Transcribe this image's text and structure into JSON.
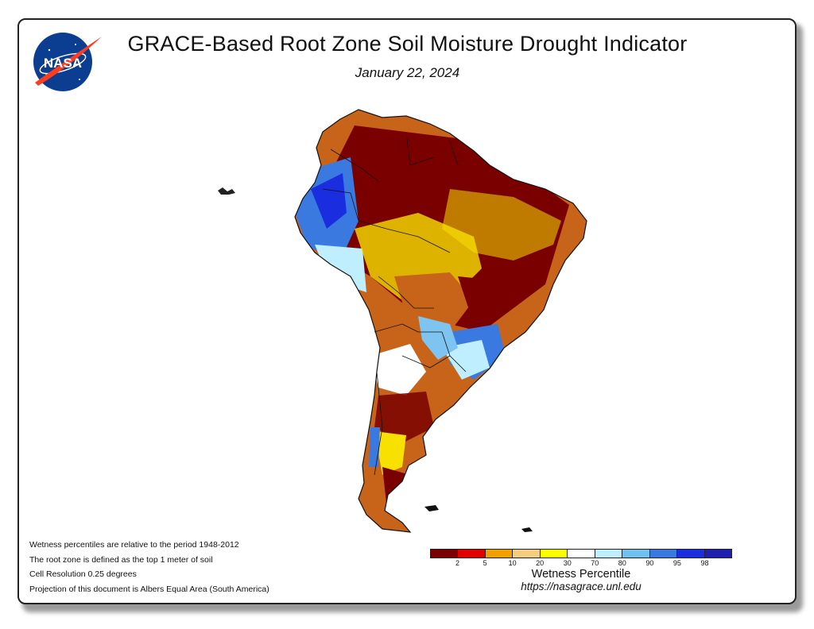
{
  "header": {
    "title": "GRACE-Based Root Zone Soil Moisture Drought Indicator",
    "date": "January 22, 2024",
    "logo_text": "NASA"
  },
  "notes": [
    "Wetness percentiles are relative to the period 1948-2012",
    "The root zone is defined as the top 1 meter of soil",
    "Cell Resolution 0.25 degrees",
    "Projection of this document is Albers Equal Area (South America)"
  ],
  "legend": {
    "title": "Wetness Percentile",
    "colors": [
      "#7a0000",
      "#e00000",
      "#f0a000",
      "#f5cc80",
      "#ffff00",
      "#ffffff",
      "#bfefff",
      "#70c0f0",
      "#3a7ae0",
      "#1a2ee0",
      "#2020b0"
    ],
    "tick_labels": [
      "2",
      "5",
      "10",
      "20",
      "30",
      "70",
      "80",
      "90",
      "95",
      "98"
    ]
  },
  "footer": {
    "url": "https://nasagrace.unl.edu"
  },
  "map": {
    "region": "South America",
    "colors": {
      "very_dry": "#7a0000",
      "dry": "#c85a00",
      "yellow": "#f8e000",
      "wet": "#3a7ae0",
      "very_wet": "#1a2ee0"
    }
  }
}
